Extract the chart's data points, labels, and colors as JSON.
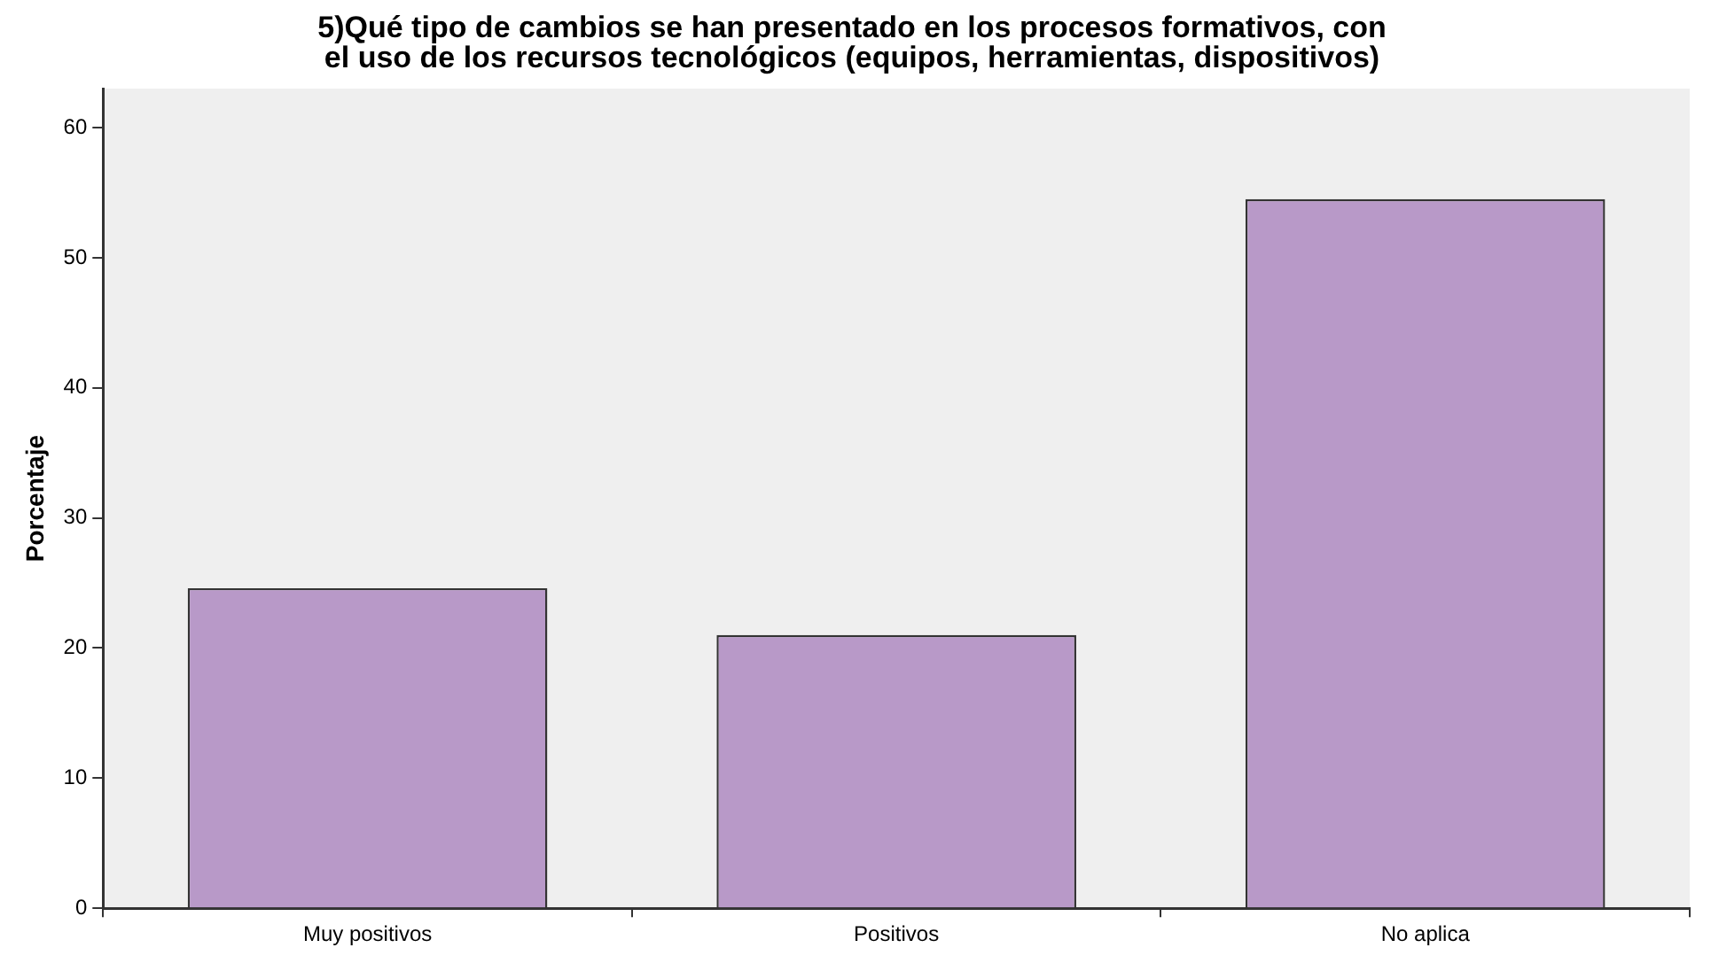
{
  "chart_data": {
    "type": "bar",
    "title": "5)Qué tipo de cambios se han presentado en los procesos formativos, con el uso de los recursos tecnológicos (equipos, herramientas, dispositivos)",
    "ylabel": "Porcentaje",
    "categories": [
      "Muy positivos",
      "Positivos",
      "No aplica"
    ],
    "values": [
      24.6,
      21.0,
      54.5
    ],
    "color": "#b899c8",
    "ylim": [
      0,
      63
    ],
    "yticks": [
      0,
      10,
      20,
      30,
      40,
      50,
      60
    ],
    "grid": false
  }
}
